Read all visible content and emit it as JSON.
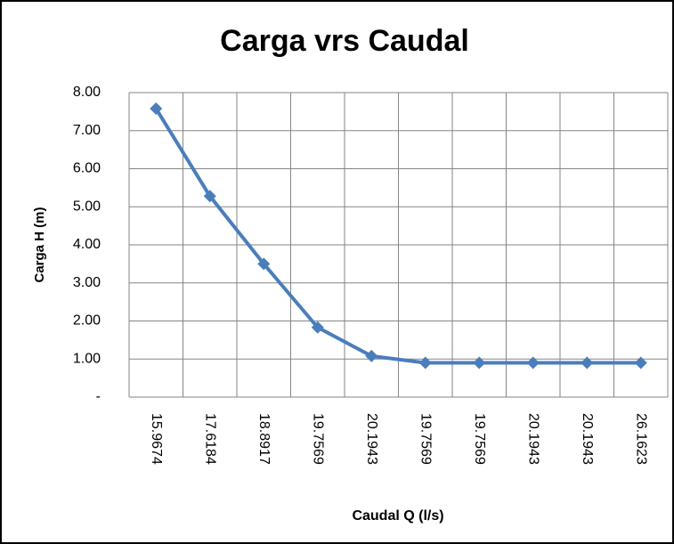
{
  "chart_data": {
    "type": "line",
    "title": "Carga vrs Caudal",
    "x_label": "Caudal  Q (l/s)",
    "y_label": "Carga H (m)",
    "categories": [
      "15.9674",
      "17.6184",
      "18.8917",
      "19.7569",
      "20.1943",
      "19.7569",
      "19.7569",
      "20.1943",
      "20.1943",
      "26.1623"
    ],
    "series": [
      {
        "name": "Carga H",
        "color": "#4a7ebb",
        "values": [
          7.58,
          5.28,
          3.5,
          1.83,
          1.08,
          0.9,
          0.9,
          0.9,
          0.9,
          0.9
        ]
      }
    ],
    "ylim": [
      0,
      8
    ],
    "yticks": [
      {
        "value": 0,
        "label": "-"
      },
      {
        "value": 1,
        "label": "1.00"
      },
      {
        "value": 2,
        "label": "2.00"
      },
      {
        "value": 3,
        "label": "3.00"
      },
      {
        "value": 4,
        "label": "4.00"
      },
      {
        "value": 5,
        "label": "5.00"
      },
      {
        "value": 6,
        "label": "6.00"
      },
      {
        "value": 7,
        "label": "7.00"
      },
      {
        "value": 8,
        "label": "8.00"
      }
    ],
    "grid": true
  }
}
